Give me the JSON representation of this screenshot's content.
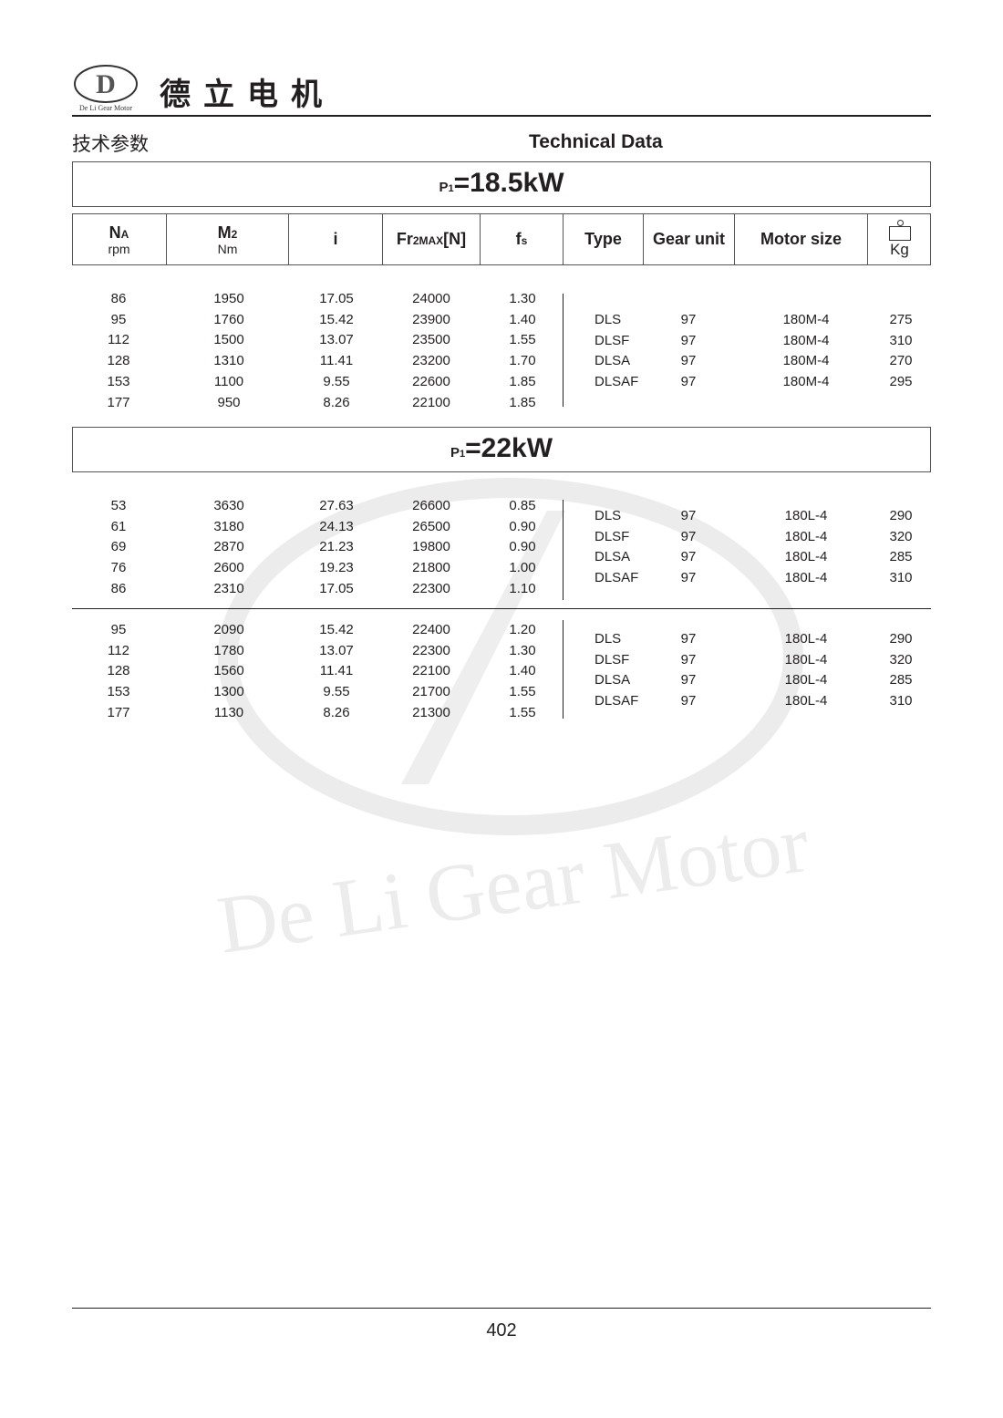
{
  "header": {
    "logo_text": "De Li Gear Motor",
    "logo_chars": "德立",
    "brand": "德立电机",
    "section_cn": "技术参数",
    "section_en": "Technical Data"
  },
  "columns": {
    "na": "N",
    "na_sub": "A",
    "na_unit": "rpm",
    "m2": "M",
    "m2_sub": "2",
    "m2_unit": "Nm",
    "i": "i",
    "fr": "Fr",
    "fr_sub": "2MAX",
    "fr_unit": "[N]",
    "fs": "f",
    "fs_sub": "s",
    "type": "Type",
    "gear": "Gear unit",
    "motor": "Motor size",
    "kg": "Kg"
  },
  "sections": [
    {
      "p_label": "P",
      "p_sub": "1",
      "p_value": "=18.5kW",
      "groups": [
        {
          "rows": [
            [
              "86",
              "1950",
              "17.05",
              "24000",
              "1.30"
            ],
            [
              "95",
              "1760",
              "15.42",
              "23900",
              "1.40"
            ],
            [
              "112",
              "1500",
              "13.07",
              "23500",
              "1.55"
            ],
            [
              "128",
              "1310",
              "11.41",
              "23200",
              "1.70"
            ],
            [
              "153",
              "1100",
              "9.55",
              "22600",
              "1.85"
            ],
            [
              "177",
              "950",
              "8.26",
              "22100",
              "1.85"
            ]
          ],
          "types": [
            [
              "DLS",
              "97",
              "180M-4",
              "275"
            ],
            [
              "DLSF",
              "97",
              "180M-4",
              "310"
            ],
            [
              "DLSA",
              "97",
              "180M-4",
              "270"
            ],
            [
              "DLSAF",
              "97",
              "180M-4",
              "295"
            ]
          ]
        }
      ]
    },
    {
      "p_label": "P",
      "p_sub": "1",
      "p_value": "=22kW",
      "groups": [
        {
          "rows": [
            [
              "53",
              "3630",
              "27.63",
              "26600",
              "0.85"
            ],
            [
              "61",
              "3180",
              "24.13",
              "26500",
              "0.90"
            ],
            [
              "69",
              "2870",
              "21.23",
              "19800",
              "0.90"
            ],
            [
              "76",
              "2600",
              "19.23",
              "21800",
              "1.00"
            ],
            [
              "86",
              "2310",
              "17.05",
              "22300",
              "1.10"
            ]
          ],
          "types": [
            [
              "DLS",
              "97",
              "180L-4",
              "290"
            ],
            [
              "DLSF",
              "97",
              "180L-4",
              "320"
            ],
            [
              "DLSA",
              "97",
              "180L-4",
              "285"
            ],
            [
              "DLSAF",
              "97",
              "180L-4",
              "310"
            ]
          ]
        },
        {
          "rows": [
            [
              "95",
              "2090",
              "15.42",
              "22400",
              "1.20"
            ],
            [
              "112",
              "1780",
              "13.07",
              "22300",
              "1.30"
            ],
            [
              "128",
              "1560",
              "11.41",
              "22100",
              "1.40"
            ],
            [
              "153",
              "1300",
              "9.55",
              "21700",
              "1.55"
            ],
            [
              "177",
              "1130",
              "8.26",
              "21300",
              "1.55"
            ]
          ],
          "types": [
            [
              "DLS",
              "97",
              "180L-4",
              "290"
            ],
            [
              "DLSF",
              "97",
              "180L-4",
              "320"
            ],
            [
              "DLSA",
              "97",
              "180L-4",
              "285"
            ],
            [
              "DLSAF",
              "97",
              "180L-4",
              "310"
            ]
          ]
        }
      ]
    }
  ],
  "footer": {
    "page_number": "402"
  }
}
